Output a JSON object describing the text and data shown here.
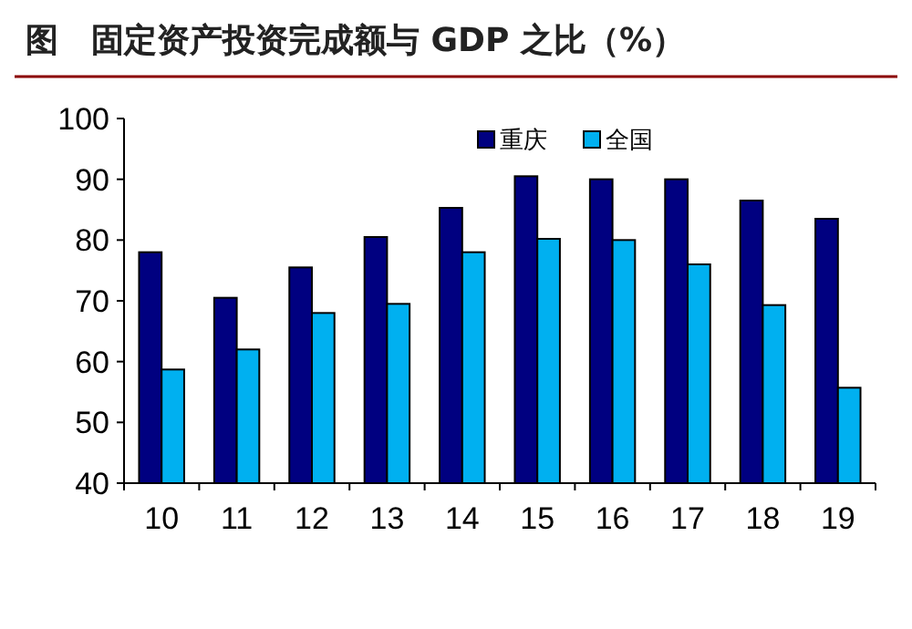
{
  "chart_data": {
    "type": "bar",
    "title": "图　固定资产投资完成额与 GDP 之比（%）",
    "categories": [
      "10",
      "11",
      "12",
      "13",
      "14",
      "15",
      "16",
      "17",
      "18",
      "19"
    ],
    "series": [
      {
        "name": "重庆",
        "color": "#000080",
        "values": [
          78,
          70.5,
          75.5,
          80.5,
          85.3,
          90.5,
          90,
          90,
          86.5,
          83.5
        ]
      },
      {
        "name": "全国",
        "color": "#00b0f0",
        "values": [
          58.7,
          62,
          68,
          69.5,
          78,
          80.2,
          80,
          76,
          69.3,
          55.7
        ]
      }
    ],
    "ylim": [
      40,
      100
    ],
    "yticks": [
      40,
      50,
      60,
      70,
      80,
      90,
      100
    ],
    "grid": false,
    "legend": "top right"
  }
}
